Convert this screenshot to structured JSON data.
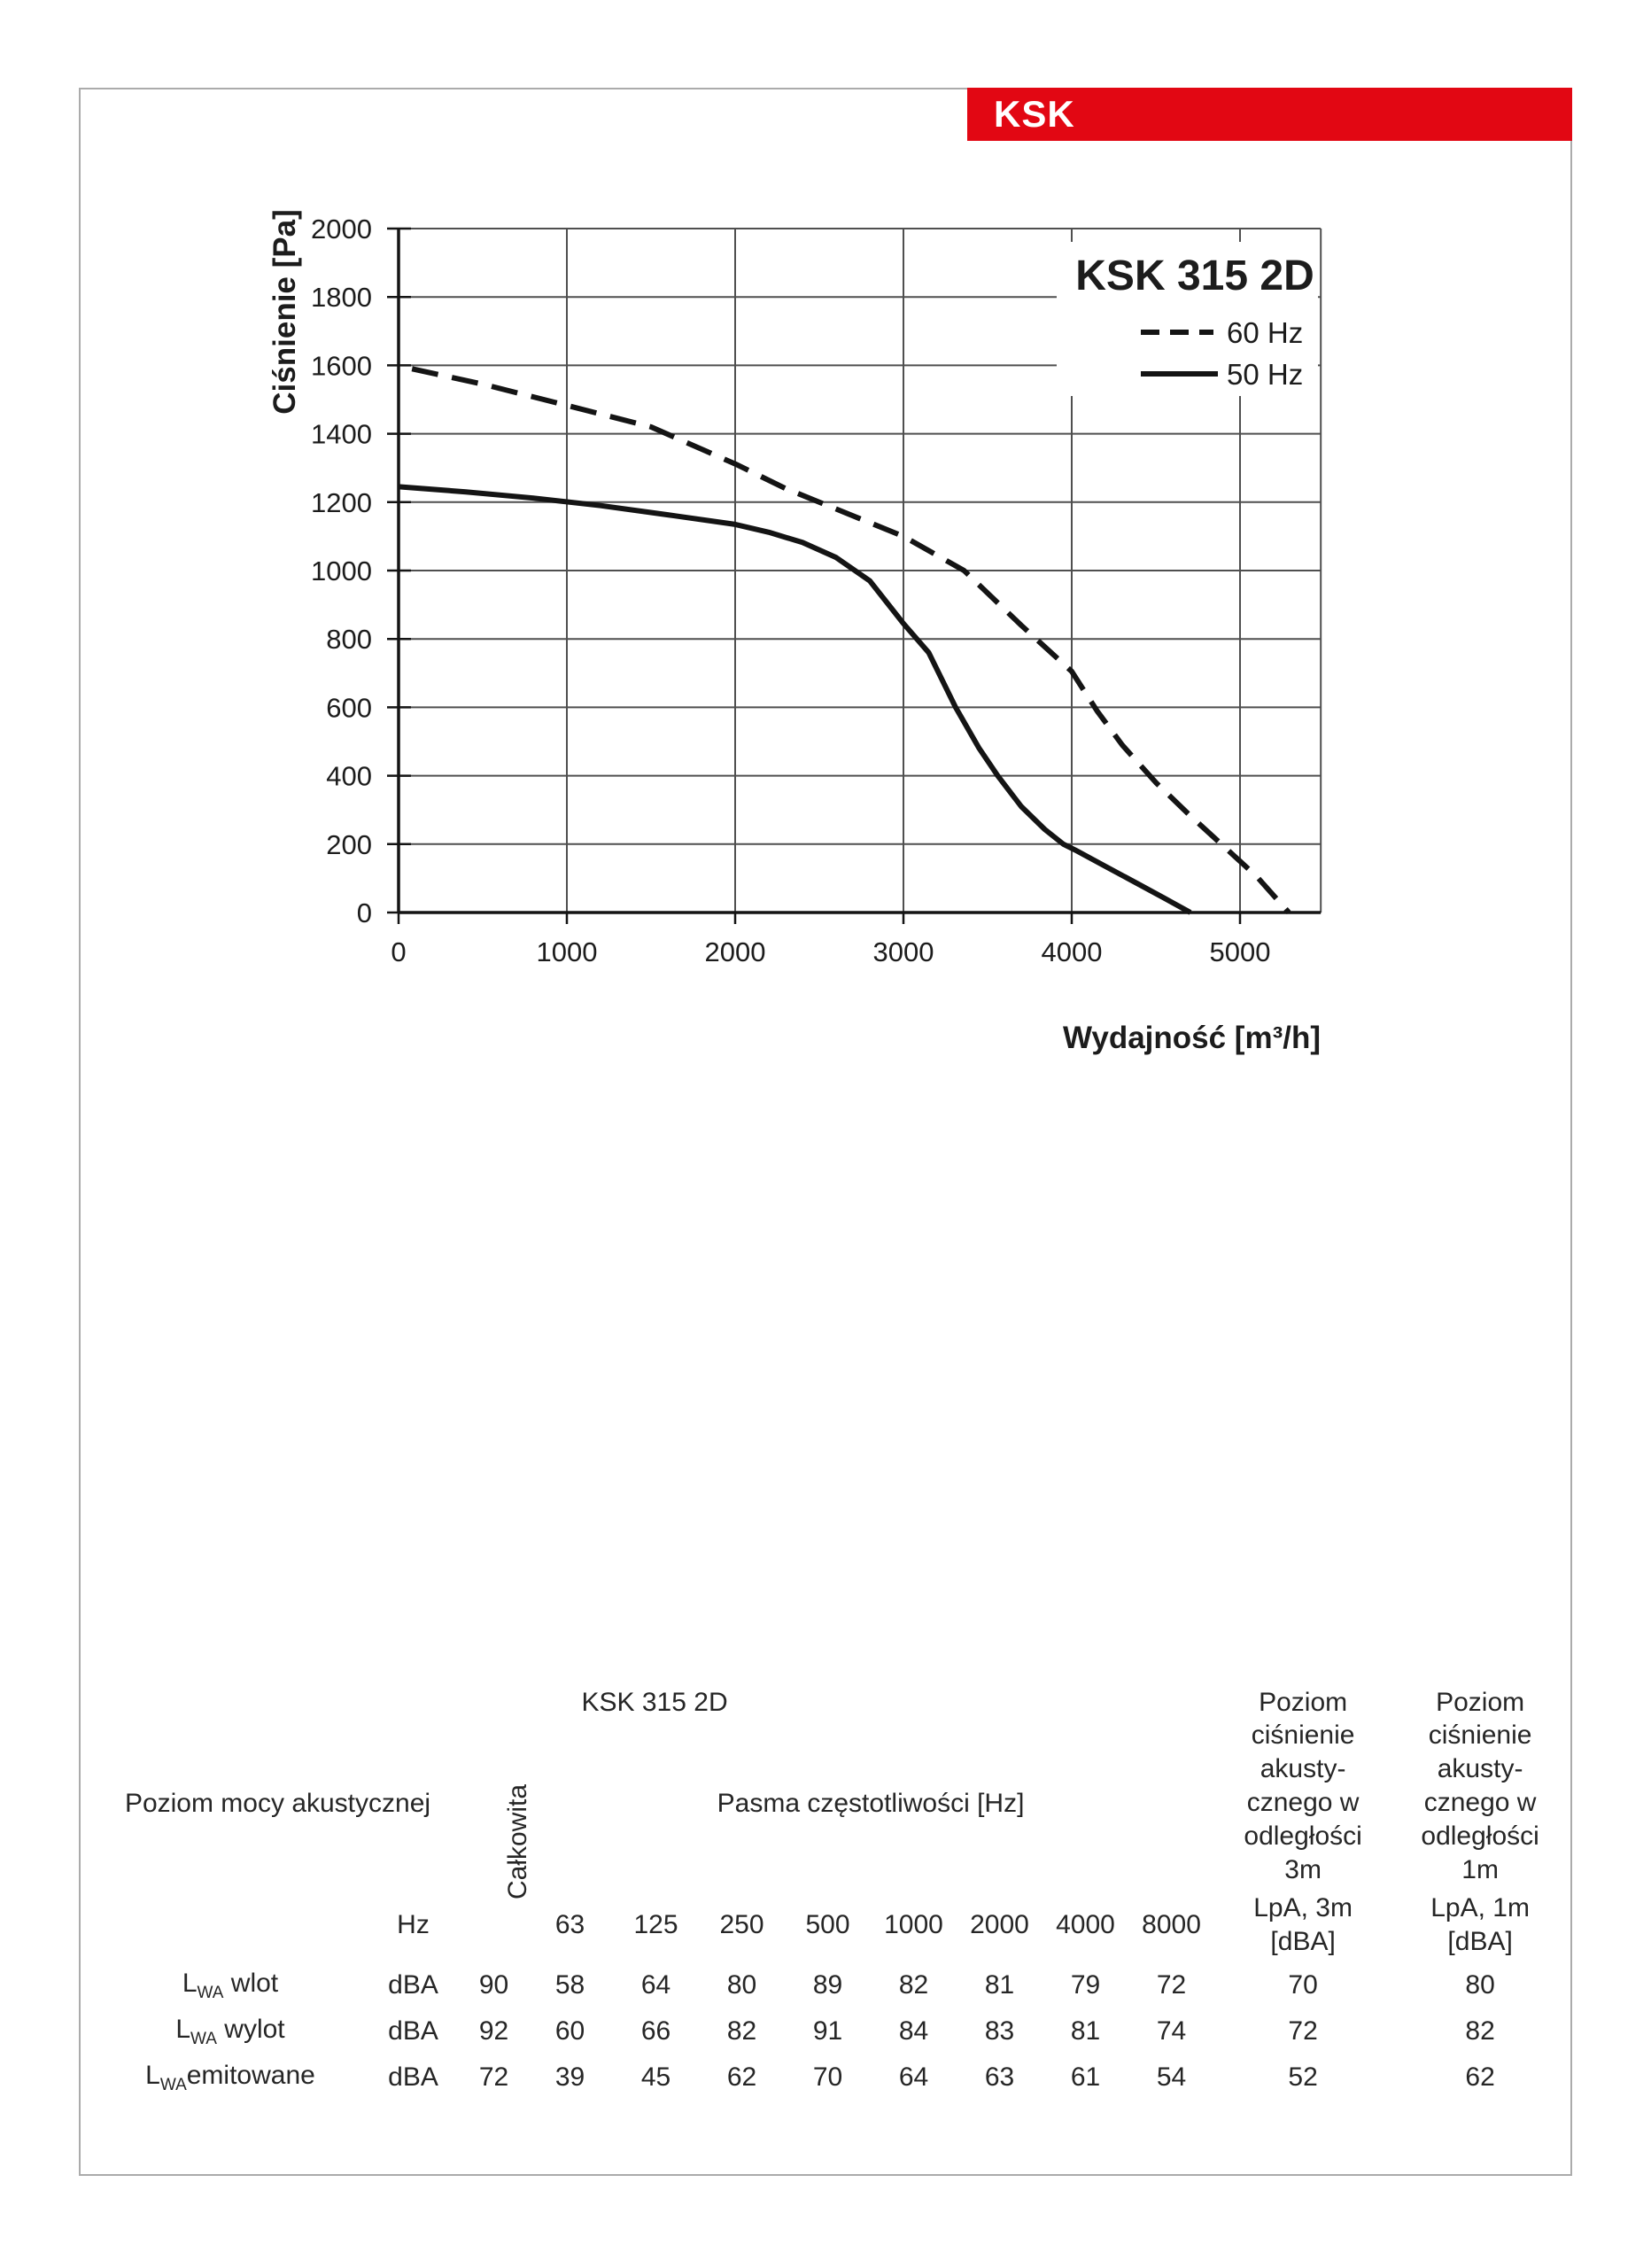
{
  "page": {
    "header_tab": "KSK"
  },
  "colors": {
    "accent_red": "#e20713",
    "page_border": "#ababab",
    "table_border": "#9a9a9a",
    "grid_gray": "#4f4f4f",
    "ink": "#141414"
  },
  "chart_data": {
    "type": "line",
    "title": "KSK 315 2D",
    "xlabel": "Wydajność [m³/h]",
    "ylabel": "Ciśnienie [Pa]",
    "xlim": [
      0,
      5480
    ],
    "ylim": [
      0,
      2000
    ],
    "xticks": [
      0,
      1000,
      2000,
      3000,
      4000,
      5000
    ],
    "yticks": [
      0,
      200,
      400,
      600,
      800,
      1000,
      1200,
      1400,
      1600,
      1800,
      2000
    ],
    "grid": true,
    "legend_position": "top-right-inside",
    "series": [
      {
        "name": "60 Hz",
        "style": "dashed",
        "points": [
          [
            80,
            1590
          ],
          [
            500,
            1545
          ],
          [
            1000,
            1483
          ],
          [
            1500,
            1420
          ],
          [
            2000,
            1312
          ],
          [
            2300,
            1240
          ],
          [
            2600,
            1180
          ],
          [
            3000,
            1100
          ],
          [
            3360,
            1000
          ],
          [
            3700,
            840
          ],
          [
            4000,
            705
          ],
          [
            4150,
            590
          ],
          [
            4300,
            490
          ],
          [
            4500,
            380
          ],
          [
            4700,
            285
          ],
          [
            4900,
            195
          ],
          [
            5100,
            105
          ],
          [
            5290,
            0
          ]
        ]
      },
      {
        "name": "50 Hz",
        "style": "solid",
        "points": [
          [
            0,
            1245
          ],
          [
            400,
            1230
          ],
          [
            800,
            1212
          ],
          [
            1200,
            1190
          ],
          [
            1600,
            1163
          ],
          [
            2000,
            1135
          ],
          [
            2200,
            1112
          ],
          [
            2400,
            1082
          ],
          [
            2600,
            1038
          ],
          [
            2800,
            970
          ],
          [
            3000,
            845
          ],
          [
            3150,
            760
          ],
          [
            3310,
            600
          ],
          [
            3450,
            480
          ],
          [
            3560,
            400
          ],
          [
            3700,
            310
          ],
          [
            3840,
            243
          ],
          [
            3950,
            200
          ],
          [
            4020,
            183
          ],
          [
            4200,
            135
          ],
          [
            4400,
            82
          ],
          [
            4550,
            42
          ],
          [
            4705,
            0
          ]
        ]
      }
    ]
  },
  "table": {
    "title": "KSK 315 2D",
    "header_power": "Poziom mocy akustycznej",
    "header_total": "Całkowita",
    "header_bands": "Pasma częstotliwości [Hz]",
    "header_unit": "Hz",
    "band_headers": [
      "63",
      "125",
      "250",
      "500",
      "1000",
      "2000",
      "4000",
      "8000"
    ],
    "lpa3_header_top": "Poziom\nciśnienie\nakusty-\ncznego w\nodległości\n3m",
    "lpa1_header_top": "Poziom\nciśnienie\nakusty-\ncznego w\nodległości\n1m",
    "lpa3_header": "LpA, 3m\n[dBA]",
    "lpa1_header": "LpA, 1m\n[dBA]",
    "rows": [
      {
        "label_prefix": "L",
        "label_sub": "WA",
        "label_rest": " wlot",
        "unit": "dBA",
        "total": "90",
        "bands": [
          "58",
          "64",
          "80",
          "89",
          "82",
          "81",
          "79",
          "72"
        ],
        "lpa3": "70",
        "lpa1": "80"
      },
      {
        "label_prefix": "L",
        "label_sub": "WA",
        "label_rest": " wylot",
        "unit": "dBA",
        "total": "92",
        "bands": [
          "60",
          "66",
          "82",
          "91",
          "84",
          "83",
          "81",
          "74"
        ],
        "lpa3": "72",
        "lpa1": "82"
      },
      {
        "label_prefix": "L",
        "label_sub": "WA",
        "label_rest": "emitowane",
        "unit": "dBA",
        "total": "72",
        "bands": [
          "39",
          "45",
          "62",
          "70",
          "64",
          "63",
          "61",
          "54"
        ],
        "lpa3": "52",
        "lpa1": "62"
      }
    ]
  }
}
